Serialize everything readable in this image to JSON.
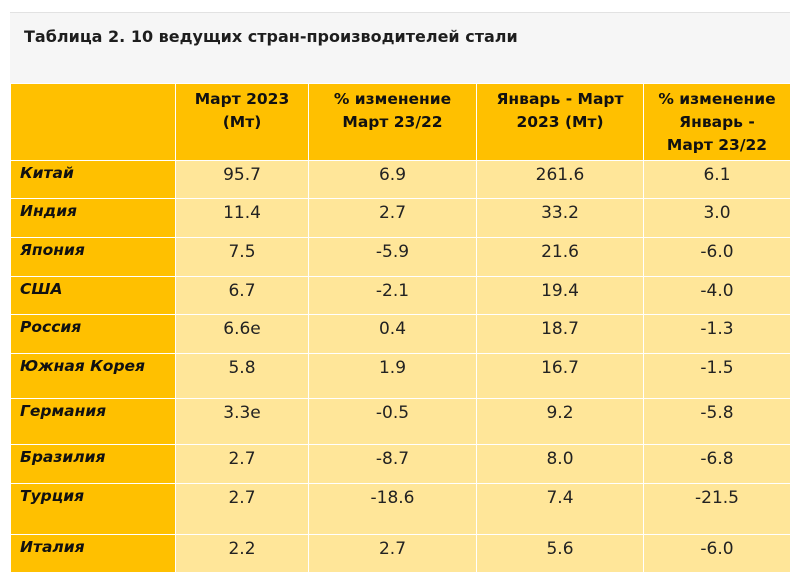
{
  "table": {
    "caption": "Таблица 2. 10 ведущих стран-производителей стали",
    "headers": [
      [
        "",
        ""
      ],
      [
        "Март 2023",
        "(Мт)"
      ],
      [
        "% изменение",
        "Март 23/22"
      ],
      [
        "Январь - Март",
        "2023 (Мт)"
      ],
      [
        "% изменение",
        "Январь -",
        "Март 23/22"
      ]
    ],
    "rows": [
      {
        "country": "Китай",
        "mar2023": "95.7",
        "chg_mar": "6.9",
        "jan_mar2023": "261.6",
        "chg_jan_mar": "6.1"
      },
      {
        "country": "Индия",
        "mar2023": "11.4",
        "chg_mar": "2.7",
        "jan_mar2023": "33.2",
        "chg_jan_mar": "3.0"
      },
      {
        "country": "Япония",
        "mar2023": "7.5",
        "chg_mar": "-5.9",
        "jan_mar2023": "21.6",
        "chg_jan_mar": "-6.0"
      },
      {
        "country": "США",
        "mar2023": "6.7",
        "chg_mar": "-2.1",
        "jan_mar2023": "19.4",
        "chg_jan_mar": "-4.0"
      },
      {
        "country": "Россия",
        "mar2023": "6.6e",
        "chg_mar": "0.4",
        "jan_mar2023": "18.7",
        "chg_jan_mar": "-1.3"
      },
      {
        "country": "Южная Корея",
        "mar2023": "5.8",
        "chg_mar": "1.9",
        "jan_mar2023": "16.7",
        "chg_jan_mar": "-1.5"
      },
      {
        "country": "Германия",
        "mar2023": "3.3e",
        "chg_mar": "-0.5",
        "jan_mar2023": "9.2",
        "chg_jan_mar": "-5.8"
      },
      {
        "country": "Бразилия",
        "mar2023": "2.7",
        "chg_mar": "-8.7",
        "jan_mar2023": "8.0",
        "chg_jan_mar": "-6.8"
      },
      {
        "country": "Турция",
        "mar2023": "2.7",
        "chg_mar": "-18.6",
        "jan_mar2023": "7.4",
        "chg_jan_mar": "-21.5"
      },
      {
        "country": "Италия",
        "mar2023": "2.2",
        "chg_mar": "2.7",
        "jan_mar2023": "5.6",
        "chg_jan_mar": "-6.0"
      }
    ],
    "colors": {
      "header": "#ffc000",
      "cell": "#ffe699",
      "caption_bg": "#f6f6f6"
    }
  }
}
